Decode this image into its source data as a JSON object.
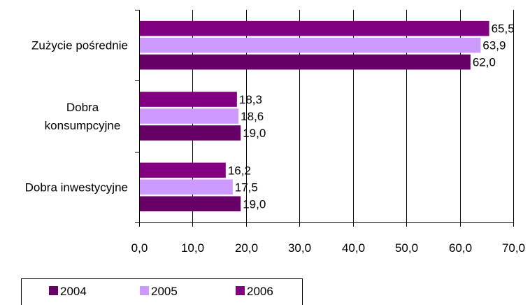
{
  "chart_data": {
    "type": "bar",
    "orientation": "horizontal",
    "categories": [
      [
        "Zużycie pośrednie"
      ],
      [
        "Dobra",
        "konsumpcyjne"
      ],
      [
        "Dobra inwestycyjne"
      ]
    ],
    "series": [
      {
        "name": "2004",
        "color": "#660066",
        "values": [
          62.0,
          19.0,
          19.0
        ],
        "labels": [
          "62,0",
          "19,0",
          "19,0"
        ]
      },
      {
        "name": "2005",
        "color": "#cc99ff",
        "values": [
          63.9,
          18.6,
          17.5
        ],
        "labels": [
          "63,9",
          "18,6",
          "17,5"
        ]
      },
      {
        "name": "2006",
        "color": "#800080",
        "values": [
          65.5,
          18.3,
          16.2
        ],
        "labels": [
          "65,5",
          "18,3",
          "16,2"
        ]
      }
    ],
    "xlim": [
      0,
      70
    ],
    "xticks": [
      0,
      10,
      20,
      30,
      40,
      50,
      60,
      70
    ],
    "xtick_labels": [
      "0,0",
      "10,0",
      "20,0",
      "30,0",
      "40,0",
      "50,0",
      "60,0",
      "70,0"
    ],
    "grid": "vertical",
    "legend_placement": "bottom-left",
    "title": "",
    "xlabel": "",
    "ylabel": ""
  }
}
